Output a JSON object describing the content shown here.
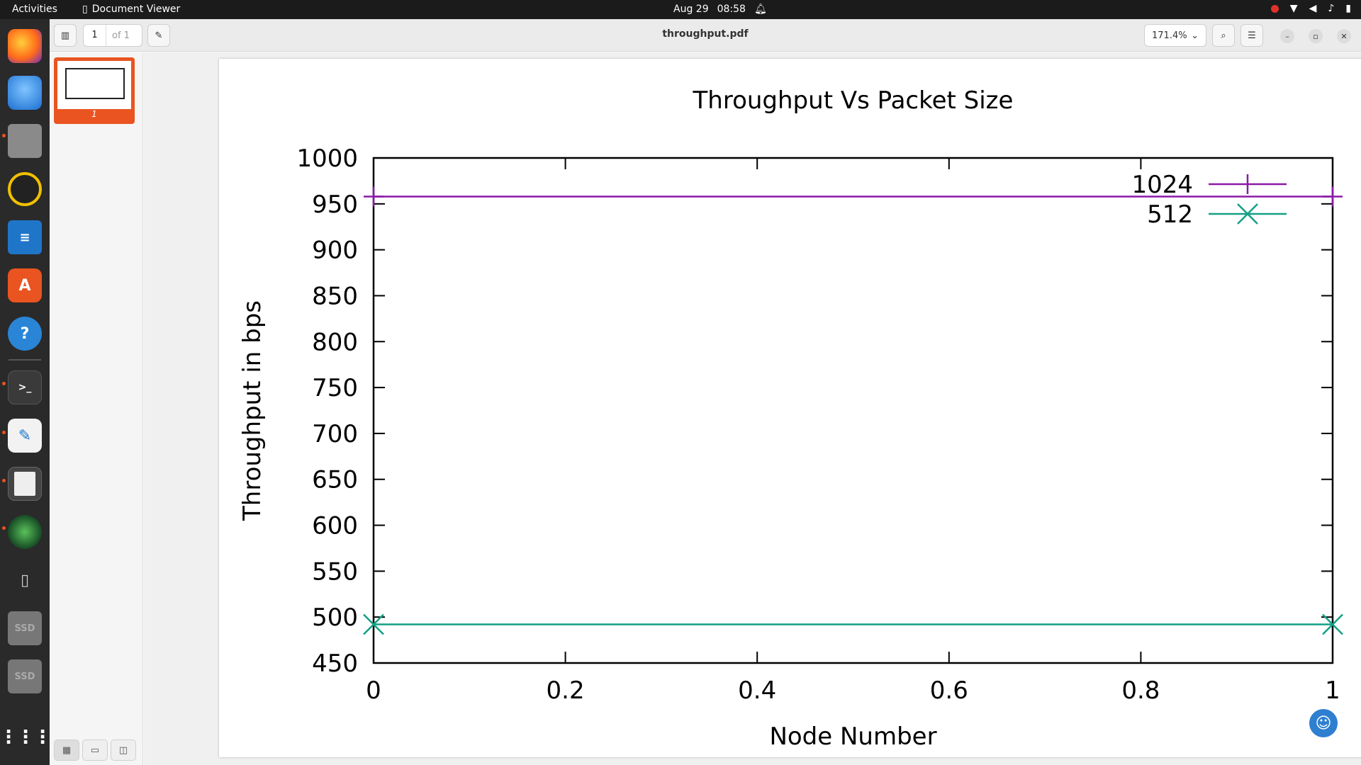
{
  "topbar": {
    "activities": "Activities",
    "app_name": "Document Viewer",
    "date": "Aug 29",
    "time": "08:58"
  },
  "dock": {
    "items": [
      "firefox-icon",
      "thunderbird-icon",
      "files-icon",
      "rhythmbox-icon",
      "writer-icon",
      "app-center-icon",
      "help-icon",
      "terminal-icon",
      "text-editor-icon",
      "document-viewer-icon",
      "shotwell-icon",
      "usb-drive-icon",
      "ssd-drive-icon",
      "ssd-drive-icon",
      "app-grid-icon"
    ],
    "ssd_label": "SSD"
  },
  "header": {
    "page_current": "1",
    "page_total": "of 1",
    "title": "throughput.pdf",
    "zoom": "171.4%"
  },
  "sidebar": {
    "thumb_page_number": "1"
  },
  "colors": {
    "series_1024": "#8b1aa8",
    "series_512": "#13a085",
    "thumb_bg": "#e95420"
  },
  "chart_data": {
    "type": "line",
    "title": "Throughput Vs Packet Size",
    "xlabel": "Node Number",
    "ylabel": "Throughput in bps",
    "xlim": [
      0,
      1
    ],
    "ylim": [
      450,
      1000
    ],
    "x_ticks": [
      "0",
      "0.2",
      "0.4",
      "0.6",
      "0.8",
      "1"
    ],
    "y_ticks": [
      "1000",
      "950",
      "900",
      "850",
      "800",
      "750",
      "700",
      "650",
      "600",
      "550",
      "500",
      "450"
    ],
    "legend_position": "top-right",
    "series": [
      {
        "name": "1024",
        "marker": "plus",
        "x": [
          0,
          1
        ],
        "y": [
          958,
          958
        ]
      },
      {
        "name": "512",
        "marker": "cross",
        "x": [
          0,
          1
        ],
        "y": [
          492,
          492
        ]
      }
    ]
  }
}
